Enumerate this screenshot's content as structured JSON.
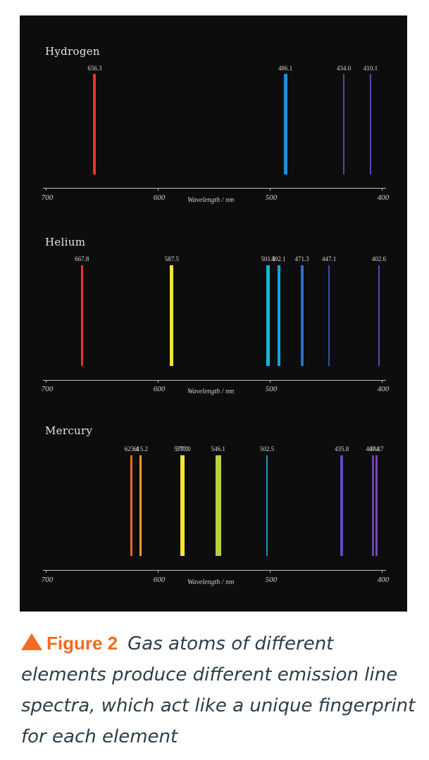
{
  "figure": {
    "number_label": "Figure 2",
    "caption": "Gas atoms of different elements produce different emission line spectra, which act like a unique fingerprint for each element",
    "accent_color": "#f26b21",
    "caption_color": "#2b3d48",
    "panel_background": "#0d0d0d"
  },
  "chart_data": {
    "type": "emission_line_spectra",
    "xlabel": "Wavelength / nm",
    "xlim": [
      700,
      400
    ],
    "x_ticks": [
      700,
      600,
      500,
      400
    ],
    "x_reversed": true,
    "grid": false,
    "panels": [
      {
        "element": "Hydrogen",
        "lines": [
          {
            "wavelength": 656.3,
            "label": "656.3",
            "color": "#f0302a",
            "width": 4
          },
          {
            "wavelength": 486.1,
            "label": "486.1",
            "color": "#1e8fd6",
            "width": 5
          },
          {
            "wavelength": 434.0,
            "label": "434.0",
            "color": "#4a4bb0",
            "width": 2
          },
          {
            "wavelength": 410.1,
            "label": "410.1",
            "color": "#6a3fb5",
            "width": 2
          }
        ]
      },
      {
        "element": "Helium",
        "lines": [
          {
            "wavelength": 667.8,
            "label": "667.8",
            "color": "#f0302a",
            "width": 3
          },
          {
            "wavelength": 587.5,
            "label": "587.5",
            "color": "#f5e23c",
            "width": 5
          },
          {
            "wavelength": 501.5,
            "label": "501.5",
            "color": "#13b8d0",
            "width": 5
          },
          {
            "wavelength": 492.1,
            "label": "492.1",
            "color": "#12a6dc",
            "width": 4
          },
          {
            "wavelength": 471.3,
            "label": "471.3",
            "color": "#2f6fc4",
            "width": 4
          },
          {
            "wavelength": 447.1,
            "label": "447.1",
            "color": "#3b4aa8",
            "width": 2
          },
          {
            "wavelength": 402.6,
            "label": "402.6",
            "color": "#6a3fb0",
            "width": 2
          }
        ]
      },
      {
        "element": "Mercury",
        "lines": [
          {
            "wavelength": 623.4,
            "label": "623.4",
            "color": "#f26a1e",
            "width": 3
          },
          {
            "wavelength": 615.2,
            "label": "615.2",
            "color": "#f5a030",
            "width": 3
          },
          {
            "wavelength": 579.0,
            "label": "579.0",
            "color": "#f8e43a",
            "width": 3
          },
          {
            "wavelength": 577.0,
            "label": "577.0",
            "color": "#f8e43a",
            "width": 3
          },
          {
            "wavelength": 546.1,
            "label": "546.1",
            "color": "#b5d23c",
            "width": 8
          },
          {
            "wavelength": 502.5,
            "label": "502.5",
            "color": "#1899b4",
            "width": 2
          },
          {
            "wavelength": 435.8,
            "label": "435.8",
            "color": "#5a4ec0",
            "width": 4
          },
          {
            "wavelength": 407.8,
            "label": "407.8",
            "color": "#6a44b8",
            "width": 3
          },
          {
            "wavelength": 404.7,
            "label": "404.7",
            "color": "#7a44b8",
            "width": 3
          }
        ]
      }
    ]
  }
}
